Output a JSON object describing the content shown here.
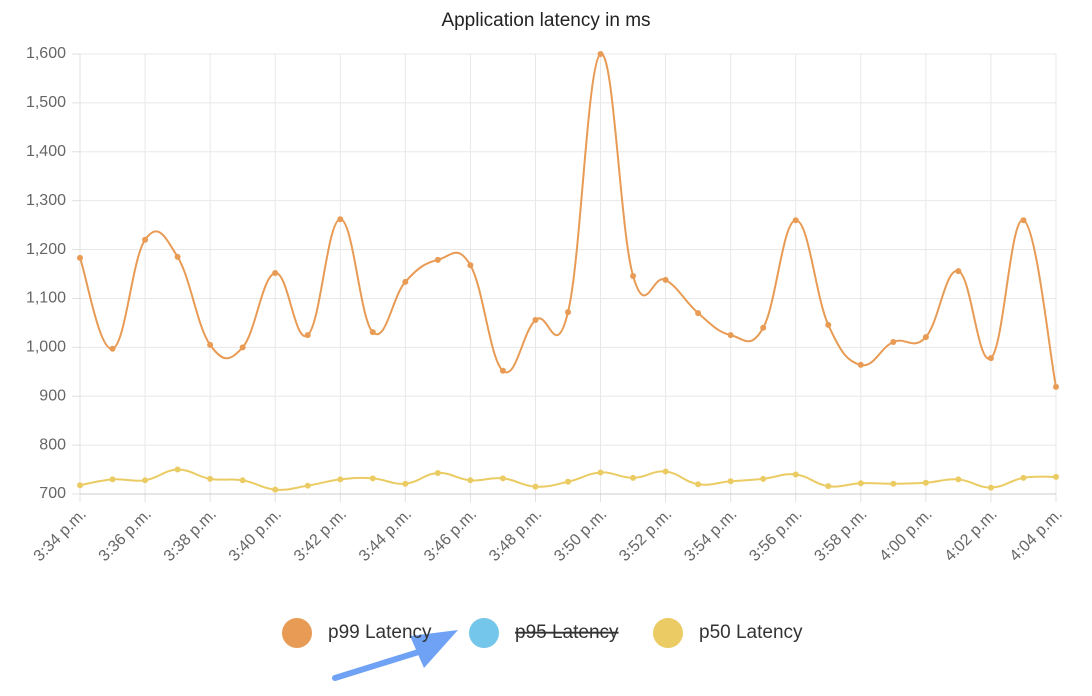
{
  "chart_data": {
    "type": "line",
    "title": "Application latency in ms",
    "categories": [
      "3:34 p.m.",
      null,
      "3:36 p.m.",
      null,
      "3:38 p.m.",
      null,
      "3:40 p.m.",
      null,
      "3:42 p.m.",
      null,
      "3:44 p.m.",
      null,
      "3:46 p.m.",
      null,
      "3:48 p.m.",
      null,
      "3:50 p.m.",
      null,
      "3:52 p.m.",
      null,
      "3:54 p.m.",
      null,
      "3:56 p.m.",
      null,
      "3:58 p.m.",
      null,
      "4:00 p.m.",
      null,
      "4:02 p.m.",
      null,
      "4:04 p.m."
    ],
    "series": [
      {
        "name": "p99 Latency",
        "color": "#e89b55",
        "values": [
          1183,
          997,
          1220,
          1185,
          1005,
          1000,
          1152,
          1025,
          1262,
          1031,
          1134,
          1179,
          1168,
          952,
          1056,
          1072,
          1600,
          1146,
          1138,
          1070,
          1025,
          1040,
          1260,
          1046,
          964,
          1011,
          1021,
          1156,
          978,
          1260,
          919
        ]
      },
      {
        "name": "p95 Latency",
        "color": "#74c6ea",
        "hidden": true,
        "values": [
          null,
          null,
          null,
          null,
          null,
          null,
          null,
          null,
          null,
          null,
          null,
          null,
          null,
          null,
          null,
          null,
          null,
          null,
          null,
          null,
          null,
          null,
          null,
          null,
          null,
          null,
          null,
          null,
          null,
          null,
          null
        ]
      },
      {
        "name": "p50 Latency",
        "color": "#ebcb63",
        "values": [
          718,
          730,
          728,
          750,
          731,
          728,
          709,
          717,
          730,
          732,
          721,
          743,
          728,
          732,
          715,
          725,
          744,
          733,
          746,
          720,
          726,
          731,
          740,
          716,
          722,
          721,
          723,
          730,
          713,
          733,
          735
        ]
      }
    ],
    "ylim": [
      700,
      1600
    ],
    "yticks": [
      700,
      800,
      900,
      {
        "value": 1000,
        "label": "1,000"
      },
      {
        "value": 1100,
        "label": "1,100"
      },
      {
        "value": 1200,
        "label": "1,200"
      },
      {
        "value": 1300,
        "label": "1,300"
      },
      {
        "value": 1400,
        "label": "1,400"
      },
      {
        "value": 1500,
        "label": "1,500"
      },
      {
        "value": 1600,
        "label": "1,600"
      }
    ],
    "grid": true
  }
}
